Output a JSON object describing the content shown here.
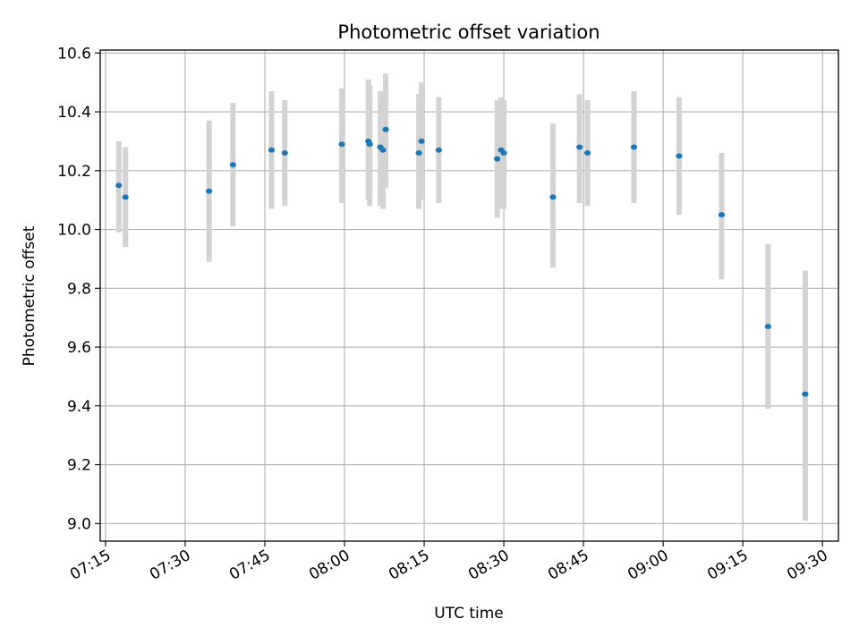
{
  "chart_data": {
    "type": "scatter",
    "title": "Photometric offset variation",
    "xlabel": "UTC time",
    "ylabel": "Photometric offset",
    "xlim": [
      "07:14",
      "09:33"
    ],
    "ylim": [
      8.94,
      10.61
    ],
    "grid": true,
    "x_ticks": [
      "07:15",
      "07:30",
      "07:45",
      "08:00",
      "08:15",
      "08:30",
      "08:45",
      "09:00",
      "09:15",
      "09:30"
    ],
    "y_ticks": [
      "9.0",
      "9.2",
      "9.4",
      "9.6",
      "9.8",
      "10.0",
      "10.2",
      "10.4",
      "10.6"
    ],
    "colors": {
      "point": "#1f77b4",
      "errorbar": "#d3d3d3",
      "grid": "#b0b0b0",
      "axes": "#000000"
    },
    "series": [
      {
        "x": [
          "07:17:30",
          "07:18:45",
          "07:34:30",
          "07:39:00",
          "07:46:15",
          "07:48:45",
          "07:59:30",
          "08:04:30",
          "08:04:45",
          "08:06:45",
          "08:07:15",
          "08:07:45",
          "08:14:00",
          "08:14:30",
          "08:17:45",
          "08:28:45",
          "08:29:30",
          "08:30:00",
          "08:39:15",
          "08:44:15",
          "08:45:45",
          "08:54:30",
          "09:03:00",
          "09:11:00",
          "09:19:45",
          "09:26:45"
        ],
        "y": [
          10.15,
          10.11,
          10.13,
          10.22,
          10.27,
          10.26,
          10.29,
          10.3,
          10.29,
          10.28,
          10.27,
          10.34,
          10.26,
          10.3,
          10.27,
          10.24,
          10.27,
          10.26,
          10.11,
          10.28,
          10.26,
          10.28,
          10.25,
          10.05,
          9.67,
          9.44
        ],
        "yerr_low": [
          9.99,
          9.94,
          9.89,
          10.01,
          10.07,
          10.08,
          10.09,
          10.1,
          10.08,
          10.08,
          10.07,
          10.14,
          10.07,
          10.1,
          10.09,
          10.04,
          10.07,
          10.07,
          9.87,
          10.09,
          10.08,
          10.09,
          10.05,
          9.83,
          9.39,
          9.01
        ],
        "yerr_high": [
          10.3,
          10.28,
          10.37,
          10.43,
          10.47,
          10.44,
          10.48,
          10.51,
          10.49,
          10.47,
          10.47,
          10.53,
          10.46,
          10.5,
          10.45,
          10.44,
          10.45,
          10.44,
          10.36,
          10.46,
          10.44,
          10.47,
          10.45,
          10.26,
          9.95,
          9.86
        ]
      }
    ]
  }
}
